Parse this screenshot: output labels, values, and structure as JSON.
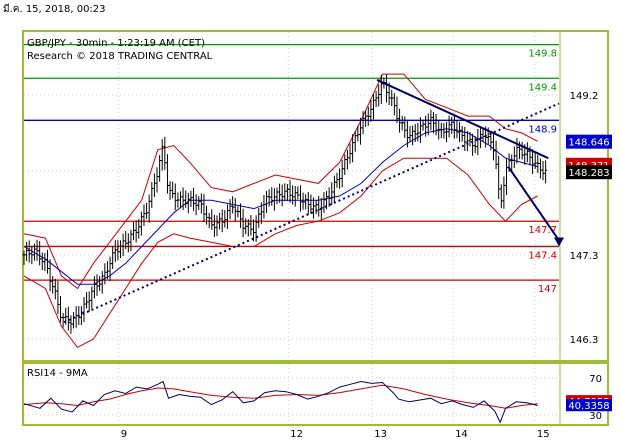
{
  "header": {
    "date": "มี.ค. 15, 2018, 00:23"
  },
  "colors": {
    "frame": "#9ebc38",
    "price": "#000000",
    "band": "#cc0000",
    "ma": "#0000cc",
    "level_green": "#009900",
    "level_blue": "#0000cc",
    "level_red": "#cc0000",
    "trend": "#000066",
    "badge_blue": "#0000cc",
    "badge_red": "#cc0000",
    "badge_dark": "#000000",
    "rsi_line": "#000066",
    "rsi_ma": "#cc0000"
  },
  "chart_data": [
    {
      "type": "candlestick",
      "title": "GBP/JPY - 30min - 1:23:19 AM (CET)",
      "subtitle": "Research © 2018 TRADING CENTRAL",
      "ylim": [
        146.05,
        149.95
      ],
      "y_ticks": [
        "149.2",
        "147.3",
        "146.3"
      ],
      "x_ticks": [
        "9",
        "12",
        "13",
        "14",
        "15"
      ],
      "x_tick_pos": [
        0.177,
        0.494,
        0.651,
        0.802,
        0.955
      ],
      "levels": [
        {
          "label": "149.8",
          "value": 149.8,
          "color": "green"
        },
        {
          "label": "149.4",
          "value": 149.4,
          "color": "green"
        },
        {
          "label": "148.9",
          "value": 148.9,
          "color": "blue"
        },
        {
          "label": "147.7",
          "value": 147.7,
          "color": "red"
        },
        {
          "label": "147.4",
          "value": 147.4,
          "color": "red"
        },
        {
          "label": "147",
          "value": 147.0,
          "color": "red"
        }
      ],
      "price_badges": [
        {
          "label": "148.646",
          "value": 148.646,
          "color": "blue"
        },
        {
          "label": "148.371",
          "value": 148.371,
          "color": "red"
        },
        {
          "label": "148.283",
          "value": 148.283,
          "color": "dark"
        }
      ],
      "close_path": [
        [
          0.0,
          147.3
        ],
        [
          0.02,
          147.35
        ],
        [
          0.04,
          147.2
        ],
        [
          0.06,
          146.8
        ],
        [
          0.07,
          146.55
        ],
        [
          0.09,
          146.5
        ],
        [
          0.11,
          146.65
        ],
        [
          0.13,
          146.9
        ],
        [
          0.15,
          147.05
        ],
        [
          0.17,
          147.35
        ],
        [
          0.19,
          147.45
        ],
        [
          0.21,
          147.6
        ],
        [
          0.23,
          147.85
        ],
        [
          0.25,
          148.3
        ],
        [
          0.26,
          148.6
        ],
        [
          0.27,
          148.05
        ],
        [
          0.29,
          147.95
        ],
        [
          0.31,
          147.95
        ],
        [
          0.33,
          147.9
        ],
        [
          0.35,
          147.65
        ],
        [
          0.37,
          147.7
        ],
        [
          0.39,
          147.9
        ],
        [
          0.41,
          147.65
        ],
        [
          0.43,
          147.6
        ],
        [
          0.45,
          147.95
        ],
        [
          0.47,
          148.0
        ],
        [
          0.49,
          148.05
        ],
        [
          0.51,
          148.0
        ],
        [
          0.53,
          147.9
        ],
        [
          0.55,
          147.85
        ],
        [
          0.57,
          148.0
        ],
        [
          0.59,
          148.25
        ],
        [
          0.61,
          148.55
        ],
        [
          0.63,
          148.85
        ],
        [
          0.65,
          149.05
        ],
        [
          0.67,
          149.35
        ],
        [
          0.69,
          149.1
        ],
        [
          0.7,
          148.9
        ],
        [
          0.72,
          148.7
        ],
        [
          0.74,
          148.8
        ],
        [
          0.76,
          148.9
        ],
        [
          0.78,
          148.75
        ],
        [
          0.8,
          148.85
        ],
        [
          0.82,
          148.7
        ],
        [
          0.84,
          148.6
        ],
        [
          0.86,
          148.75
        ],
        [
          0.88,
          148.55
        ],
        [
          0.89,
          147.85
        ],
        [
          0.9,
          148.3
        ],
        [
          0.92,
          148.55
        ],
        [
          0.94,
          148.5
        ],
        [
          0.96,
          148.35
        ],
        [
          0.975,
          148.28
        ]
      ],
      "upper_band": [
        [
          0.0,
          147.55
        ],
        [
          0.04,
          147.5
        ],
        [
          0.07,
          147.05
        ],
        [
          0.1,
          146.9
        ],
        [
          0.13,
          147.2
        ],
        [
          0.16,
          147.45
        ],
        [
          0.19,
          147.7
        ],
        [
          0.22,
          147.95
        ],
        [
          0.25,
          148.55
        ],
        [
          0.28,
          148.6
        ],
        [
          0.31,
          148.4
        ],
        [
          0.35,
          148.1
        ],
        [
          0.39,
          148.05
        ],
        [
          0.43,
          148.15
        ],
        [
          0.47,
          148.25
        ],
        [
          0.51,
          148.2
        ],
        [
          0.55,
          148.15
        ],
        [
          0.59,
          148.4
        ],
        [
          0.63,
          148.9
        ],
        [
          0.67,
          149.45
        ],
        [
          0.71,
          149.45
        ],
        [
          0.75,
          149.15
        ],
        [
          0.79,
          149.05
        ],
        [
          0.83,
          148.95
        ],
        [
          0.87,
          148.95
        ],
        [
          0.9,
          148.8
        ],
        [
          0.93,
          148.75
        ],
        [
          0.96,
          148.65
        ]
      ],
      "lower_band": [
        [
          0.0,
          147.05
        ],
        [
          0.04,
          146.9
        ],
        [
          0.07,
          146.45
        ],
        [
          0.1,
          146.2
        ],
        [
          0.13,
          146.3
        ],
        [
          0.16,
          146.6
        ],
        [
          0.19,
          146.9
        ],
        [
          0.22,
          147.2
        ],
        [
          0.25,
          147.45
        ],
        [
          0.28,
          147.55
        ],
        [
          0.31,
          147.5
        ],
        [
          0.35,
          147.45
        ],
        [
          0.39,
          147.4
        ],
        [
          0.43,
          147.4
        ],
        [
          0.47,
          147.55
        ],
        [
          0.51,
          147.65
        ],
        [
          0.55,
          147.7
        ],
        [
          0.59,
          147.8
        ],
        [
          0.63,
          148.0
        ],
        [
          0.67,
          148.3
        ],
        [
          0.71,
          148.45
        ],
        [
          0.75,
          148.45
        ],
        [
          0.79,
          148.45
        ],
        [
          0.83,
          148.25
        ],
        [
          0.87,
          147.9
        ],
        [
          0.9,
          147.7
        ],
        [
          0.93,
          147.9
        ],
        [
          0.96,
          148.0
        ]
      ],
      "moving_average": [
        [
          0.0,
          147.4
        ],
        [
          0.04,
          147.25
        ],
        [
          0.07,
          147.1
        ],
        [
          0.1,
          146.95
        ],
        [
          0.13,
          146.95
        ],
        [
          0.16,
          147.05
        ],
        [
          0.19,
          147.2
        ],
        [
          0.22,
          147.4
        ],
        [
          0.25,
          147.6
        ],
        [
          0.28,
          147.8
        ],
        [
          0.31,
          147.95
        ],
        [
          0.35,
          147.95
        ],
        [
          0.39,
          147.9
        ],
        [
          0.43,
          147.85
        ],
        [
          0.47,
          147.95
        ],
        [
          0.51,
          147.95
        ],
        [
          0.55,
          147.95
        ],
        [
          0.59,
          148.0
        ],
        [
          0.63,
          148.15
        ],
        [
          0.67,
          148.4
        ],
        [
          0.71,
          148.6
        ],
        [
          0.75,
          148.75
        ],
        [
          0.79,
          148.8
        ],
        [
          0.83,
          148.75
        ],
        [
          0.87,
          148.6
        ],
        [
          0.9,
          148.45
        ],
        [
          0.93,
          148.4
        ],
        [
          0.96,
          148.35
        ]
      ],
      "trendlines": [
        {
          "points": [
            [
              0.075,
              146.5
            ],
            [
              1.0,
              149.1
            ]
          ],
          "style": "dotted"
        },
        {
          "points": [
            [
              0.66,
              149.38
            ],
            [
              0.98,
              148.45
            ]
          ],
          "style": "solid"
        }
      ],
      "forecast_arrow": {
        "points": [
          [
            0.905,
            148.35
          ],
          [
            1.0,
            147.4
          ]
        ]
      }
    },
    {
      "type": "line",
      "title": "RSI14 - 9MA",
      "ylim": [
        20,
        85
      ],
      "y_ticks": [
        "70",
        "30"
      ],
      "value_badges": [
        {
          "label": "44.7955",
          "value": 44.7955,
          "color": "red"
        },
        {
          "label": "40.3358",
          "value": 40.3358,
          "color": "blue"
        }
      ],
      "series": [
        {
          "values": [
            [
              0.0,
              42
            ],
            [
              0.03,
              37
            ],
            [
              0.05,
              48
            ],
            [
              0.07,
              36
            ],
            [
              0.09,
              33
            ],
            [
              0.11,
              45
            ],
            [
              0.13,
              40
            ],
            [
              0.15,
              52
            ],
            [
              0.17,
              56
            ],
            [
              0.19,
              53
            ],
            [
              0.21,
              60
            ],
            [
              0.23,
              58
            ],
            [
              0.25,
              63
            ],
            [
              0.26,
              66
            ],
            [
              0.27,
              48
            ],
            [
              0.29,
              52
            ],
            [
              0.31,
              50
            ],
            [
              0.33,
              49
            ],
            [
              0.35,
              41
            ],
            [
              0.37,
              46
            ],
            [
              0.39,
              55
            ],
            [
              0.41,
              43
            ],
            [
              0.43,
              45
            ],
            [
              0.45,
              54
            ],
            [
              0.47,
              56
            ],
            [
              0.49,
              55
            ],
            [
              0.51,
              52
            ],
            [
              0.53,
              47
            ],
            [
              0.55,
              50
            ],
            [
              0.57,
              54
            ],
            [
              0.59,
              60
            ],
            [
              0.61,
              63
            ],
            [
              0.63,
              66
            ],
            [
              0.65,
              64
            ],
            [
              0.67,
              65
            ],
            [
              0.69,
              54
            ],
            [
              0.7,
              47
            ],
            [
              0.72,
              44
            ],
            [
              0.74,
              46
            ],
            [
              0.76,
              48
            ],
            [
              0.78,
              42
            ],
            [
              0.8,
              45
            ],
            [
              0.82,
              41
            ],
            [
              0.84,
              38
            ],
            [
              0.86,
              45
            ],
            [
              0.88,
              34
            ],
            [
              0.89,
              22
            ],
            [
              0.9,
              37
            ],
            [
              0.92,
              44
            ],
            [
              0.94,
              43
            ],
            [
              0.96,
              40
            ]
          ]
        },
        {
          "values": [
            [
              0.0,
              41
            ],
            [
              0.04,
              43
            ],
            [
              0.07,
              42
            ],
            [
              0.1,
              40
            ],
            [
              0.13,
              44
            ],
            [
              0.16,
              47
            ],
            [
              0.19,
              52
            ],
            [
              0.22,
              56
            ],
            [
              0.25,
              59
            ],
            [
              0.28,
              58
            ],
            [
              0.31,
              55
            ],
            [
              0.35,
              51
            ],
            [
              0.39,
              49
            ],
            [
              0.43,
              48
            ],
            [
              0.47,
              51
            ],
            [
              0.51,
              52
            ],
            [
              0.55,
              51
            ],
            [
              0.59,
              54
            ],
            [
              0.63,
              58
            ],
            [
              0.67,
              62
            ],
            [
              0.71,
              58
            ],
            [
              0.75,
              52
            ],
            [
              0.79,
              47
            ],
            [
              0.83,
              43
            ],
            [
              0.87,
              40
            ],
            [
              0.9,
              37
            ],
            [
              0.93,
              40
            ],
            [
              0.96,
              42
            ]
          ]
        }
      ]
    }
  ]
}
